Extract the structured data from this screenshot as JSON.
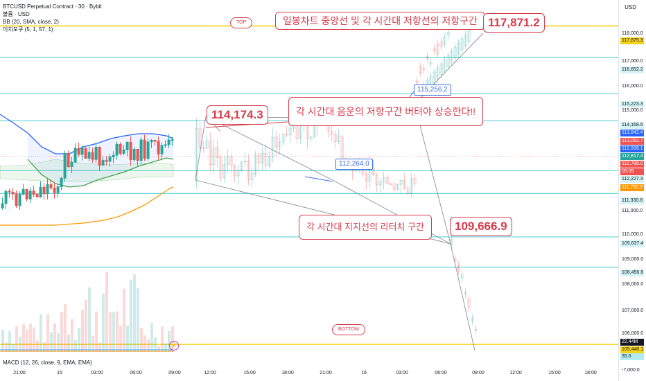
{
  "legend": {
    "symbol": "BTCUSD Perpetual Contract · 30 · Bybit",
    "volume": "볼륨 · USD",
    "bb": "BB (20, SMA, close, 2)",
    "ichimoku": "이치모쿠 (5, 1, 57, 1)"
  },
  "macd_legend": "MACD (12, 26, close, 9, EMA, EMA)",
  "currency": "USD",
  "annotations": {
    "top_pill": "TOP",
    "bottom_pill": "BOTTOM",
    "resist_title": "일봉차트 중앙선 및 각 시간대 저항선의 저항구간",
    "resist_middle": "각 시간대 음운의 저항구간 버텨야 상승한다!!",
    "support": "각 시간대 지지선의 리터치 구간",
    "price_117871": "117,871.2",
    "price_114174": "114,174.3",
    "price_109666": "109,666.9",
    "price_115256": "115,256.2",
    "price_112264": "112,264.0"
  },
  "price_axis": [
    {
      "label": "118,000.0",
      "style": "plain"
    },
    {
      "label": "117,875.3",
      "style": "yellow"
    },
    {
      "label": "117,000.0",
      "style": "plain"
    },
    {
      "label": "116,652.2",
      "style": "cyan"
    },
    {
      "label": "116,000.0",
      "style": "plain"
    },
    {
      "label": "115,223.3",
      "style": "cyan"
    },
    {
      "label": "115,000.0",
      "style": "plain"
    },
    {
      "label": "114,168.6",
      "style": "cyan"
    },
    {
      "label": "113,842.4",
      "style": "blue"
    },
    {
      "label": "113,062.7",
      "style": "red"
    },
    {
      "label": "112,918.1",
      "style": "blue"
    },
    {
      "label": "112,817.4",
      "style": "green"
    },
    {
      "label": "112,788.0",
      "style": "red"
    },
    {
      "label": "05:05",
      "style": "red"
    },
    {
      "label": "112,227.3",
      "style": "cyan"
    },
    {
      "label": "111,792.5",
      "style": "orange"
    },
    {
      "label": "111,330.8",
      "style": "cyan"
    },
    {
      "label": "111,000.0",
      "style": "plain"
    },
    {
      "label": "110,000.0",
      "style": "plain"
    },
    {
      "label": "109,637.4",
      "style": "cyan"
    },
    {
      "label": "109,000.0",
      "style": "plain"
    },
    {
      "label": "108,456.6",
      "style": "cyan"
    },
    {
      "label": "108,000.0",
      "style": "plain"
    },
    {
      "label": "107,000.0",
      "style": "plain"
    },
    {
      "label": "106,000.0",
      "style": "plain"
    },
    {
      "label": "22.44M",
      "style": "dark"
    },
    {
      "label": "105,440.1",
      "style": "yellow"
    },
    {
      "label": "35.6",
      "style": "teal"
    },
    {
      "label": "-7,000.0",
      "style": "plain"
    }
  ],
  "time_axis": [
    "21:00",
    "15",
    "03:00",
    "06:00",
    "09:00",
    "12:00",
    "15:00",
    "18:00",
    "21:00",
    "16",
    "03:00",
    "06:00",
    "09:00",
    "12:00",
    "15:00",
    "18:00"
  ],
  "chart_data": {
    "type": "candlestick",
    "y_unit": "USD",
    "ylim": [
      105200,
      118400
    ],
    "levels": [
      117875.3,
      116652.2,
      115223.3,
      114168.6,
      112227.3,
      111330.8,
      109637.4,
      108456.6,
      105440.1
    ],
    "last_price": 112788.0,
    "markers": {
      "top": 117871.2,
      "high_a": 114174.3,
      "mid_b": 115256.2,
      "mid_c": 112264.0,
      "low_d": 109666.9
    },
    "colors": {
      "up": "#26a69a",
      "down": "#ef5350",
      "level": "#5fd3d9",
      "yellow": "#f5d21b",
      "bb_upper": "#2962ff",
      "bb_basis": "#43a047",
      "bb_lower": "#ff9800",
      "accent": "#d93a4a"
    }
  }
}
